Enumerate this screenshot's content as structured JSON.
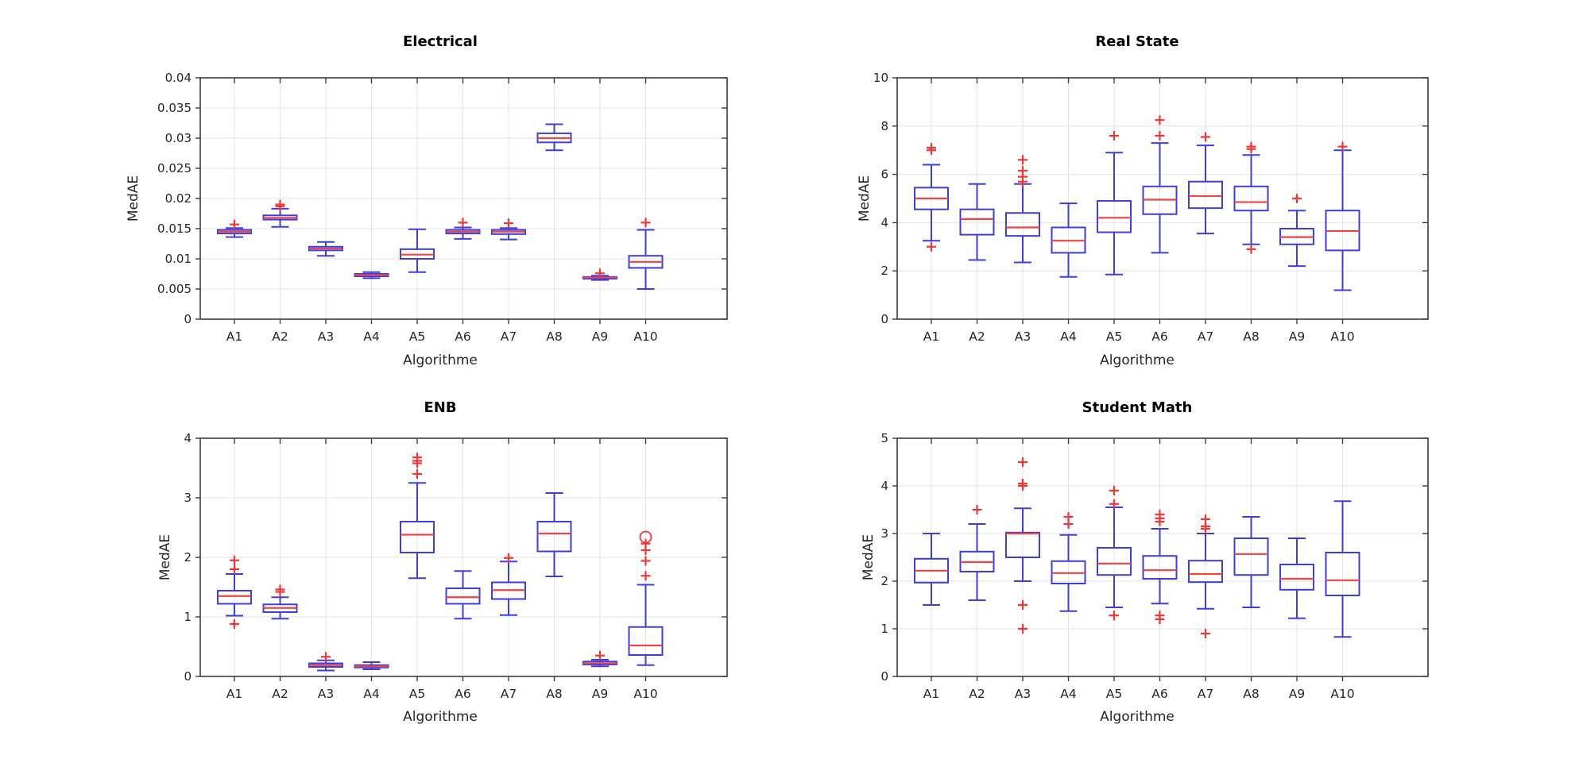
{
  "figure": {
    "background": "#ffffff"
  },
  "style": {
    "box_color": "#3e3ee0",
    "median_color": "#f04343",
    "outlier_color": "#f23535",
    "grid_color": "#e4e4e4",
    "axis_color": "#3c3c3c",
    "text_color": "#262626",
    "title_color": "#000000"
  },
  "chart_data": [
    {
      "type": "boxplot",
      "title": "Electrical",
      "xlabel": "Algorithme",
      "ylabel": "MedAE",
      "grid": true,
      "legend": "none",
      "categories": [
        "A1",
        "A2",
        "A3",
        "A4",
        "A5",
        "A6",
        "A7",
        "A8",
        "A9",
        "A10"
      ],
      "ylim": [
        0,
        0.04
      ],
      "yticks": [
        0,
        0.005,
        0.01,
        0.015,
        0.02,
        0.025,
        0.03,
        0.035,
        0.04
      ],
      "ytick_labels": [
        "0",
        "0.005",
        "0.01",
        "0.015",
        "0.02",
        "0.025",
        "0.03",
        "0.035",
        "0.04"
      ],
      "boxes": [
        {
          "whisker_low": 0.0136,
          "q1": 0.0142,
          "median": 0.0145,
          "q3": 0.0148,
          "whisker_high": 0.0151,
          "outliers": [
            0.0157
          ],
          "far_outliers": []
        },
        {
          "whisker_low": 0.0153,
          "q1": 0.0165,
          "median": 0.0168,
          "q3": 0.0172,
          "whisker_high": 0.0183,
          "outliers": [
            0.0187,
            0.019
          ],
          "far_outliers": []
        },
        {
          "whisker_low": 0.0105,
          "q1": 0.0114,
          "median": 0.0117,
          "q3": 0.012,
          "whisker_high": 0.0128,
          "outliers": [],
          "far_outliers": []
        },
        {
          "whisker_low": 0.0068,
          "q1": 0.0071,
          "median": 0.0073,
          "q3": 0.0075,
          "whisker_high": 0.0078,
          "outliers": [],
          "far_outliers": []
        },
        {
          "whisker_low": 0.0078,
          "q1": 0.01,
          "median": 0.0107,
          "q3": 0.0116,
          "whisker_high": 0.0149,
          "outliers": [],
          "far_outliers": []
        },
        {
          "whisker_low": 0.0133,
          "q1": 0.0142,
          "median": 0.0145,
          "q3": 0.0148,
          "whisker_high": 0.0152,
          "outliers": [
            0.016
          ],
          "far_outliers": []
        },
        {
          "whisker_low": 0.0132,
          "q1": 0.0141,
          "median": 0.0145,
          "q3": 0.0148,
          "whisker_high": 0.0151,
          "outliers": [
            0.0159
          ],
          "far_outliers": []
        },
        {
          "whisker_low": 0.028,
          "q1": 0.0293,
          "median": 0.03,
          "q3": 0.0308,
          "whisker_high": 0.0323,
          "outliers": [],
          "far_outliers": []
        },
        {
          "whisker_low": 0.0065,
          "q1": 0.0067,
          "median": 0.0069,
          "q3": 0.007,
          "whisker_high": 0.0072,
          "outliers": [
            0.0076
          ],
          "far_outliers": []
        },
        {
          "whisker_low": 0.005,
          "q1": 0.0085,
          "median": 0.0095,
          "q3": 0.0105,
          "whisker_high": 0.0148,
          "outliers": [
            0.016
          ],
          "far_outliers": []
        }
      ]
    },
    {
      "type": "boxplot",
      "title": "Real State",
      "xlabel": "Algorithme",
      "ylabel": "MedAE",
      "grid": true,
      "legend": "none",
      "categories": [
        "A1",
        "A2",
        "A3",
        "A4",
        "A5",
        "A6",
        "A7",
        "A8",
        "A9",
        "A10"
      ],
      "ylim": [
        0,
        10
      ],
      "yticks": [
        0,
        2,
        4,
        6,
        8,
        10
      ],
      "ytick_labels": [
        "0",
        "2",
        "4",
        "6",
        "8",
        "10"
      ],
      "boxes": [
        {
          "whisker_low": 3.25,
          "q1": 4.55,
          "median": 5.0,
          "q3": 5.45,
          "whisker_high": 6.4,
          "outliers": [
            3.0,
            7.0,
            7.1
          ],
          "far_outliers": []
        },
        {
          "whisker_low": 2.45,
          "q1": 3.5,
          "median": 4.15,
          "q3": 4.55,
          "whisker_high": 5.6,
          "outliers": [],
          "far_outliers": []
        },
        {
          "whisker_low": 2.35,
          "q1": 3.45,
          "median": 3.8,
          "q3": 4.4,
          "whisker_high": 5.6,
          "outliers": [
            5.7,
            5.9,
            6.15,
            6.6
          ],
          "far_outliers": []
        },
        {
          "whisker_low": 1.75,
          "q1": 2.75,
          "median": 3.25,
          "q3": 3.8,
          "whisker_high": 4.8,
          "outliers": [],
          "far_outliers": []
        },
        {
          "whisker_low": 1.85,
          "q1": 3.6,
          "median": 4.2,
          "q3": 4.9,
          "whisker_high": 6.9,
          "outliers": [
            7.6
          ],
          "far_outliers": []
        },
        {
          "whisker_low": 2.75,
          "q1": 4.35,
          "median": 4.95,
          "q3": 5.5,
          "whisker_high": 7.3,
          "outliers": [
            7.6,
            8.25
          ],
          "far_outliers": []
        },
        {
          "whisker_low": 3.55,
          "q1": 4.6,
          "median": 5.1,
          "q3": 5.7,
          "whisker_high": 7.2,
          "outliers": [
            7.55
          ],
          "far_outliers": []
        },
        {
          "whisker_low": 3.1,
          "q1": 4.5,
          "median": 4.85,
          "q3": 5.5,
          "whisker_high": 6.8,
          "outliers": [
            2.9,
            7.05,
            7.15
          ],
          "far_outliers": []
        },
        {
          "whisker_low": 2.2,
          "q1": 3.1,
          "median": 3.4,
          "q3": 3.75,
          "whisker_high": 4.5,
          "outliers": [
            5.0
          ],
          "far_outliers": []
        },
        {
          "whisker_low": 1.2,
          "q1": 2.85,
          "median": 3.65,
          "q3": 4.5,
          "whisker_high": 7.0,
          "outliers": [
            7.15
          ],
          "far_outliers": []
        }
      ]
    },
    {
      "type": "boxplot",
      "title": "ENB",
      "xlabel": "Algorithme",
      "ylabel": "MedAE",
      "grid": true,
      "legend": "none",
      "categories": [
        "A1",
        "A2",
        "A3",
        "A4",
        "A5",
        "A6",
        "A7",
        "A8",
        "A9",
        "A10"
      ],
      "ylim": [
        0,
        4
      ],
      "yticks": [
        0,
        1,
        2,
        3,
        4
      ],
      "ytick_labels": [
        "0",
        "1",
        "2",
        "3",
        "4"
      ],
      "boxes": [
        {
          "whisker_low": 1.02,
          "q1": 1.22,
          "median": 1.35,
          "q3": 1.44,
          "whisker_high": 1.72,
          "outliers": [
            0.88,
            1.8,
            1.95
          ],
          "far_outliers": []
        },
        {
          "whisker_low": 0.97,
          "q1": 1.08,
          "median": 1.15,
          "q3": 1.21,
          "whisker_high": 1.33,
          "outliers": [
            1.42,
            1.46
          ],
          "far_outliers": []
        },
        {
          "whisker_low": 0.1,
          "q1": 0.16,
          "median": 0.19,
          "q3": 0.22,
          "whisker_high": 0.27,
          "outliers": [
            0.33
          ],
          "far_outliers": []
        },
        {
          "whisker_low": 0.12,
          "q1": 0.15,
          "median": 0.17,
          "q3": 0.19,
          "whisker_high": 0.24,
          "outliers": [],
          "far_outliers": []
        },
        {
          "whisker_low": 1.65,
          "q1": 2.08,
          "median": 2.38,
          "q3": 2.6,
          "whisker_high": 3.25,
          "outliers": [
            3.4,
            3.58,
            3.62,
            3.68
          ],
          "far_outliers": []
        },
        {
          "whisker_low": 0.97,
          "q1": 1.22,
          "median": 1.33,
          "q3": 1.48,
          "whisker_high": 1.77,
          "outliers": [],
          "far_outliers": []
        },
        {
          "whisker_low": 1.03,
          "q1": 1.3,
          "median": 1.45,
          "q3": 1.58,
          "whisker_high": 1.93,
          "outliers": [
            1.99
          ],
          "far_outliers": []
        },
        {
          "whisker_low": 1.68,
          "q1": 2.1,
          "median": 2.4,
          "q3": 2.6,
          "whisker_high": 3.08,
          "outliers": [],
          "far_outliers": []
        },
        {
          "whisker_low": 0.17,
          "q1": 0.2,
          "median": 0.22,
          "q3": 0.25,
          "whisker_high": 0.28,
          "outliers": [
            0.35
          ],
          "far_outliers": []
        },
        {
          "whisker_low": 0.19,
          "q1": 0.36,
          "median": 0.52,
          "q3": 0.83,
          "whisker_high": 1.54,
          "outliers": [
            1.69,
            1.94,
            2.12,
            2.23
          ],
          "far_outliers": [
            2.34
          ]
        }
      ]
    },
    {
      "type": "boxplot",
      "title": "Student Math",
      "xlabel": "Algorithme",
      "ylabel": "MedAE",
      "grid": true,
      "legend": "none",
      "categories": [
        "A1",
        "A2",
        "A3",
        "A4",
        "A5",
        "A6",
        "A7",
        "A8",
        "A9",
        "A10"
      ],
      "ylim": [
        0,
        5
      ],
      "yticks": [
        0,
        1,
        2,
        3,
        4,
        5
      ],
      "ytick_labels": [
        "0",
        "1",
        "2",
        "3",
        "4",
        "5"
      ],
      "boxes": [
        {
          "whisker_low": 1.5,
          "q1": 1.97,
          "median": 2.22,
          "q3": 2.47,
          "whisker_high": 3.0,
          "outliers": [],
          "far_outliers": []
        },
        {
          "whisker_low": 1.6,
          "q1": 2.2,
          "median": 2.4,
          "q3": 2.62,
          "whisker_high": 3.2,
          "outliers": [
            3.5
          ],
          "far_outliers": []
        },
        {
          "whisker_low": 2.0,
          "q1": 2.5,
          "median": 3.0,
          "q3": 3.02,
          "whisker_high": 3.53,
          "outliers": [
            1.0,
            1.5,
            4.0,
            4.05,
            4.5
          ],
          "far_outliers": []
        },
        {
          "whisker_low": 1.37,
          "q1": 1.95,
          "median": 2.17,
          "q3": 2.42,
          "whisker_high": 2.97,
          "outliers": [
            3.2,
            3.35
          ],
          "far_outliers": []
        },
        {
          "whisker_low": 1.45,
          "q1": 2.13,
          "median": 2.37,
          "q3": 2.7,
          "whisker_high": 3.55,
          "outliers": [
            1.28,
            3.62,
            3.9
          ],
          "far_outliers": []
        },
        {
          "whisker_low": 1.53,
          "q1": 2.05,
          "median": 2.23,
          "q3": 2.53,
          "whisker_high": 3.1,
          "outliers": [
            1.2,
            1.28,
            3.25,
            3.32,
            3.4
          ],
          "far_outliers": []
        },
        {
          "whisker_low": 1.42,
          "q1": 1.98,
          "median": 2.15,
          "q3": 2.43,
          "whisker_high": 3.0,
          "outliers": [
            0.9,
            3.1,
            3.15,
            3.3
          ],
          "far_outliers": []
        },
        {
          "whisker_low": 1.45,
          "q1": 2.13,
          "median": 2.57,
          "q3": 2.9,
          "whisker_high": 3.35,
          "outliers": [],
          "far_outliers": []
        },
        {
          "whisker_low": 1.22,
          "q1": 1.82,
          "median": 2.05,
          "q3": 2.35,
          "whisker_high": 2.9,
          "outliers": [],
          "far_outliers": []
        },
        {
          "whisker_low": 0.83,
          "q1": 1.7,
          "median": 2.02,
          "q3": 2.6,
          "whisker_high": 3.68,
          "outliers": [],
          "far_outliers": []
        }
      ]
    }
  ]
}
